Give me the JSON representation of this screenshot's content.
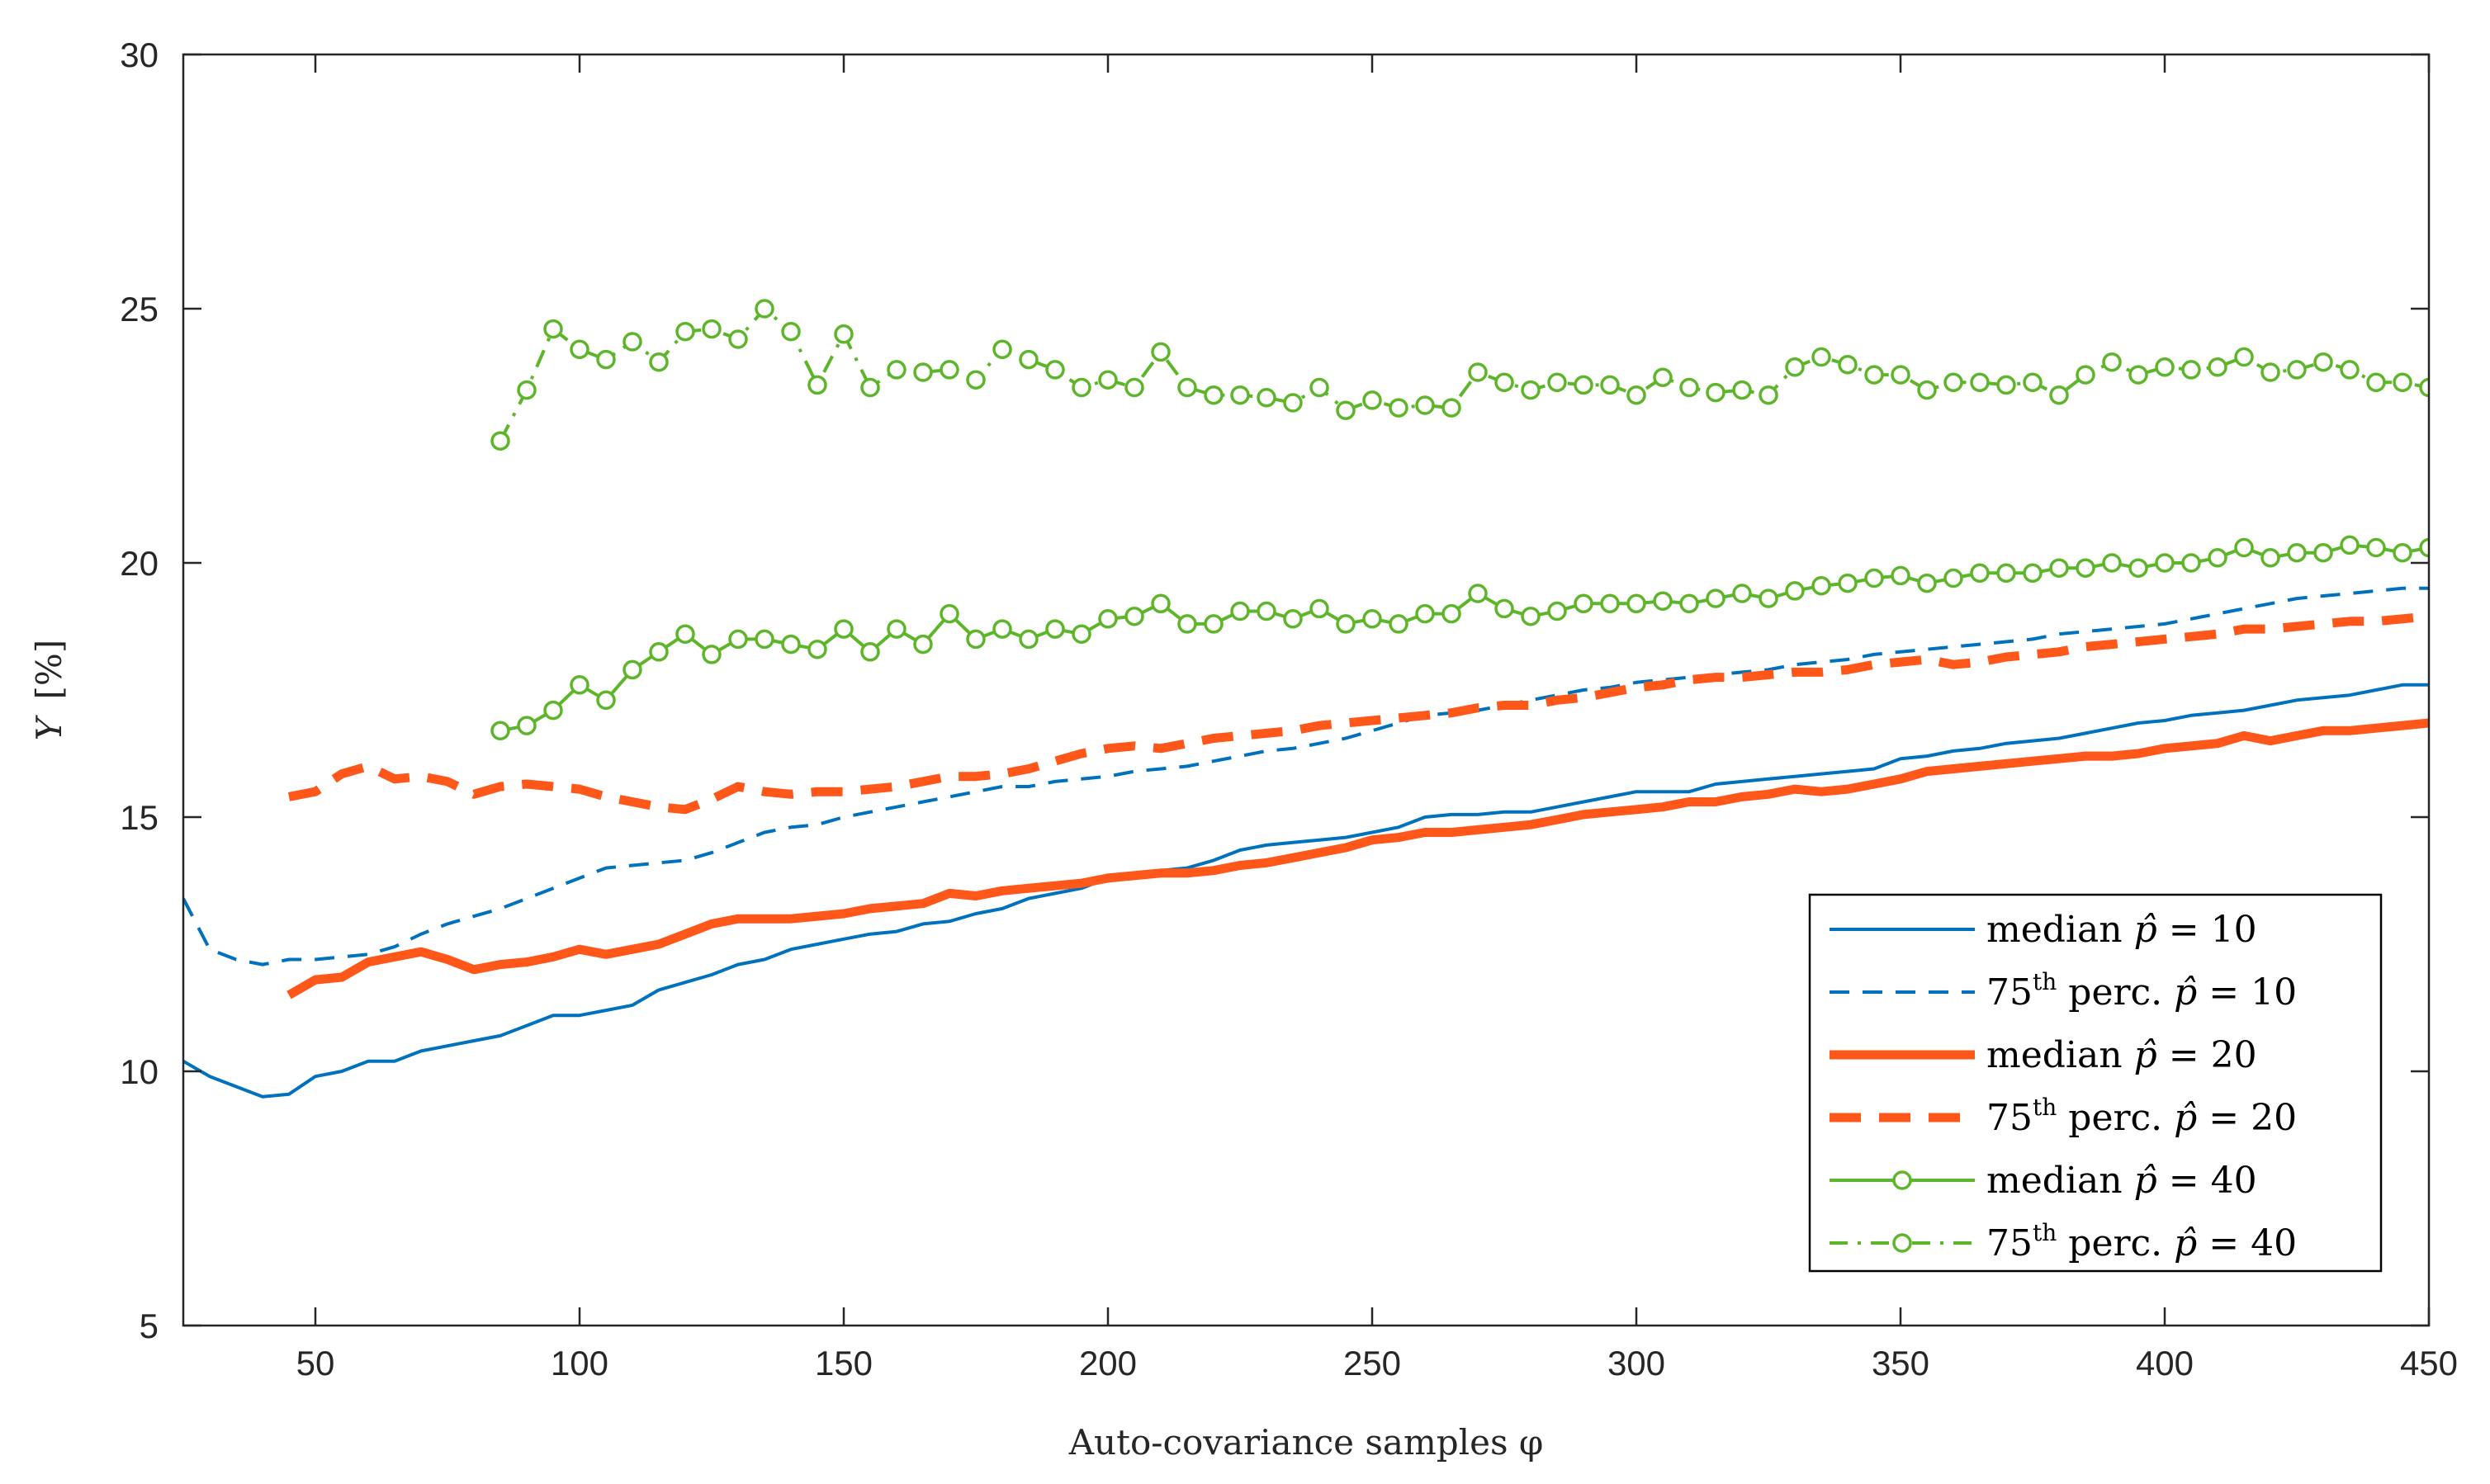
{
  "chart_data": {
    "type": "line",
    "title": "",
    "xlabel": "Auto-covariance samples φ",
    "ylabel": "Y [%]",
    "ylabel_parts": {
      "symbol": "Y",
      "unit": "[%]"
    },
    "xlim": [
      25,
      450
    ],
    "ylim": [
      5,
      30
    ],
    "xticks": [
      50,
      100,
      150,
      200,
      250,
      300,
      350,
      400,
      450
    ],
    "yticks": [
      5,
      10,
      15,
      20,
      25,
      30
    ],
    "grid": false,
    "legend_position": "bottom-right",
    "colors": {
      "blue": "#0072BD",
      "orange": "#FF5719",
      "green": "#5DB62A",
      "axis": "#262626"
    },
    "series": [
      {
        "name": "median p̂ = 10",
        "legend": {
          "pre": "median ",
          "sup": "",
          "post": "",
          "p": "p̂",
          "eq": " = 10"
        },
        "color": "#0072BD",
        "style": "solid",
        "width": 4,
        "marker": "none",
        "x": [
          25,
          30,
          35,
          40,
          45,
          50,
          55,
          60,
          65,
          70,
          75,
          80,
          85,
          90,
          95,
          100,
          105,
          110,
          115,
          120,
          125,
          130,
          135,
          140,
          145,
          150,
          155,
          160,
          165,
          170,
          175,
          180,
          185,
          190,
          195,
          200,
          205,
          210,
          215,
          220,
          225,
          230,
          235,
          240,
          245,
          250,
          255,
          260,
          265,
          270,
          275,
          280,
          285,
          290,
          295,
          300,
          305,
          310,
          315,
          320,
          325,
          330,
          335,
          340,
          345,
          350,
          355,
          360,
          365,
          370,
          375,
          380,
          385,
          390,
          395,
          400,
          405,
          410,
          415,
          420,
          425,
          430,
          435,
          440,
          445,
          450
        ],
        "values": [
          10.2,
          9.9,
          9.7,
          9.5,
          9.55,
          9.9,
          10.0,
          10.2,
          10.2,
          10.4,
          10.5,
          10.6,
          10.7,
          10.9,
          11.1,
          11.1,
          11.2,
          11.3,
          11.6,
          11.75,
          11.9,
          12.1,
          12.2,
          12.4,
          12.5,
          12.6,
          12.7,
          12.75,
          12.9,
          12.95,
          13.1,
          13.2,
          13.4,
          13.5,
          13.6,
          13.8,
          13.85,
          13.95,
          14.0,
          14.15,
          14.35,
          14.45,
          14.5,
          14.55,
          14.6,
          14.7,
          14.8,
          15.0,
          15.05,
          15.05,
          15.1,
          15.1,
          15.2,
          15.3,
          15.4,
          15.5,
          15.5,
          15.5,
          15.65,
          15.7,
          15.75,
          15.8,
          15.85,
          15.9,
          15.95,
          16.15,
          16.2,
          16.3,
          16.35,
          16.45,
          16.5,
          16.55,
          16.65,
          16.75,
          16.85,
          16.9,
          17.0,
          17.05,
          17.1,
          17.2,
          17.3,
          17.35,
          17.4,
          17.5,
          17.6,
          17.6
        ]
      },
      {
        "name": "75th perc. p̂ = 10",
        "legend": {
          "pre": "75",
          "sup": "th",
          "post": "  perc. ",
          "p": "p̂",
          "eq": " = 10"
        },
        "color": "#0072BD",
        "style": "dashed",
        "width": 4,
        "marker": "none",
        "x": [
          25,
          30,
          35,
          40,
          45,
          50,
          55,
          60,
          65,
          70,
          75,
          80,
          85,
          90,
          95,
          100,
          105,
          110,
          115,
          120,
          125,
          130,
          135,
          140,
          145,
          150,
          155,
          160,
          165,
          170,
          175,
          180,
          185,
          190,
          195,
          200,
          205,
          210,
          215,
          220,
          225,
          230,
          235,
          240,
          245,
          250,
          255,
          260,
          265,
          270,
          275,
          280,
          285,
          290,
          295,
          300,
          305,
          310,
          315,
          320,
          325,
          330,
          335,
          340,
          345,
          350,
          355,
          360,
          365,
          370,
          375,
          380,
          385,
          390,
          395,
          400,
          405,
          410,
          415,
          420,
          425,
          430,
          435,
          440,
          445,
          450
        ],
        "values": [
          13.4,
          12.4,
          12.2,
          12.1,
          12.2,
          12.2,
          12.25,
          12.3,
          12.45,
          12.7,
          12.9,
          13.05,
          13.2,
          13.4,
          13.6,
          13.8,
          14.0,
          14.05,
          14.1,
          14.15,
          14.3,
          14.5,
          14.7,
          14.8,
          14.85,
          15.0,
          15.1,
          15.2,
          15.3,
          15.4,
          15.5,
          15.6,
          15.6,
          15.7,
          15.75,
          15.8,
          15.9,
          15.95,
          16.0,
          16.1,
          16.2,
          16.3,
          16.35,
          16.45,
          16.55,
          16.7,
          16.85,
          17.0,
          17.05,
          17.1,
          17.2,
          17.3,
          17.4,
          17.5,
          17.55,
          17.65,
          17.7,
          17.75,
          17.8,
          17.85,
          17.9,
          18.0,
          18.05,
          18.1,
          18.2,
          18.25,
          18.3,
          18.35,
          18.4,
          18.45,
          18.5,
          18.6,
          18.65,
          18.7,
          18.75,
          18.8,
          18.9,
          19.0,
          19.1,
          19.2,
          19.3,
          19.35,
          19.4,
          19.45,
          19.5,
          19.5
        ]
      },
      {
        "name": "median p̂ = 20",
        "legend": {
          "pre": "median ",
          "sup": "",
          "post": "",
          "p": "p̂",
          "eq": " = 20"
        },
        "color": "#FF5719",
        "style": "solid",
        "width": 11,
        "marker": "none",
        "x": [
          45,
          50,
          55,
          60,
          65,
          70,
          75,
          80,
          85,
          90,
          95,
          100,
          105,
          110,
          115,
          120,
          125,
          130,
          135,
          140,
          145,
          150,
          155,
          160,
          165,
          170,
          175,
          180,
          185,
          190,
          195,
          200,
          205,
          210,
          215,
          220,
          225,
          230,
          235,
          240,
          245,
          250,
          255,
          260,
          265,
          270,
          275,
          280,
          285,
          290,
          295,
          300,
          305,
          310,
          315,
          320,
          325,
          330,
          335,
          340,
          345,
          350,
          355,
          360,
          365,
          370,
          375,
          380,
          385,
          390,
          395,
          400,
          405,
          410,
          415,
          420,
          425,
          430,
          435,
          440,
          445,
          450
        ],
        "values": [
          11.5,
          11.8,
          11.85,
          12.15,
          12.25,
          12.35,
          12.2,
          12.0,
          12.1,
          12.15,
          12.25,
          12.4,
          12.3,
          12.4,
          12.5,
          12.7,
          12.9,
          13.0,
          13.0,
          13.0,
          13.05,
          13.1,
          13.2,
          13.25,
          13.3,
          13.5,
          13.45,
          13.55,
          13.6,
          13.65,
          13.7,
          13.8,
          13.85,
          13.9,
          13.9,
          13.95,
          14.05,
          14.1,
          14.2,
          14.3,
          14.4,
          14.55,
          14.6,
          14.7,
          14.7,
          14.75,
          14.8,
          14.85,
          14.95,
          15.05,
          15.1,
          15.15,
          15.2,
          15.3,
          15.3,
          15.4,
          15.45,
          15.55,
          15.5,
          15.55,
          15.65,
          15.75,
          15.9,
          15.95,
          16.0,
          16.05,
          16.1,
          16.15,
          16.2,
          16.2,
          16.25,
          16.35,
          16.4,
          16.45,
          16.6,
          16.5,
          16.6,
          16.7,
          16.7,
          16.75,
          16.8,
          16.85
        ]
      },
      {
        "name": "75th perc. p̂ = 20",
        "legend": {
          "pre": "75",
          "sup": "th",
          "post": "  perc. ",
          "p": "p̂",
          "eq": " = 20"
        },
        "color": "#FF5719",
        "style": "dashed",
        "width": 11,
        "marker": "none",
        "x": [
          45,
          50,
          55,
          60,
          65,
          70,
          75,
          80,
          85,
          90,
          95,
          100,
          105,
          110,
          115,
          120,
          125,
          130,
          135,
          140,
          145,
          150,
          155,
          160,
          165,
          170,
          175,
          180,
          185,
          190,
          195,
          200,
          205,
          210,
          215,
          220,
          225,
          230,
          235,
          240,
          245,
          250,
          255,
          260,
          265,
          270,
          275,
          280,
          285,
          290,
          295,
          300,
          305,
          310,
          315,
          320,
          325,
          330,
          335,
          340,
          345,
          350,
          355,
          360,
          365,
          370,
          375,
          380,
          385,
          390,
          395,
          400,
          405,
          410,
          415,
          420,
          425,
          430,
          435,
          440,
          445,
          450
        ],
        "values": [
          15.4,
          15.5,
          15.85,
          16.0,
          15.75,
          15.8,
          15.7,
          15.45,
          15.6,
          15.65,
          15.6,
          15.55,
          15.4,
          15.3,
          15.2,
          15.15,
          15.35,
          15.6,
          15.5,
          15.45,
          15.5,
          15.5,
          15.55,
          15.6,
          15.7,
          15.8,
          15.8,
          15.85,
          15.95,
          16.1,
          16.25,
          16.35,
          16.4,
          16.35,
          16.45,
          16.55,
          16.6,
          16.65,
          16.7,
          16.8,
          16.85,
          16.9,
          16.95,
          17.0,
          17.05,
          17.15,
          17.2,
          17.2,
          17.3,
          17.35,
          17.45,
          17.55,
          17.6,
          17.7,
          17.75,
          17.75,
          17.8,
          17.85,
          17.85,
          17.9,
          18.0,
          18.05,
          18.1,
          18.0,
          18.05,
          18.15,
          18.2,
          18.25,
          18.35,
          18.4,
          18.45,
          18.5,
          18.55,
          18.6,
          18.7,
          18.7,
          18.75,
          18.8,
          18.85,
          18.85,
          18.9,
          18.95
        ]
      },
      {
        "name": "median p̂ = 40",
        "legend": {
          "pre": "median ",
          "sup": "",
          "post": "",
          "p": "p̂",
          "eq": " = 40"
        },
        "color": "#5DB62A",
        "style": "solid",
        "width": 4,
        "marker": "circle",
        "x": [
          85,
          90,
          95,
          100,
          105,
          110,
          115,
          120,
          125,
          130,
          135,
          140,
          145,
          150,
          155,
          160,
          165,
          170,
          175,
          180,
          185,
          190,
          195,
          200,
          205,
          210,
          215,
          220,
          225,
          230,
          235,
          240,
          245,
          250,
          255,
          260,
          265,
          270,
          275,
          280,
          285,
          290,
          295,
          300,
          305,
          310,
          315,
          320,
          325,
          330,
          335,
          340,
          345,
          350,
          355,
          360,
          365,
          370,
          375,
          380,
          385,
          390,
          395,
          400,
          405,
          410,
          415,
          420,
          425,
          430,
          435,
          440,
          445,
          450
        ],
        "values": [
          16.7,
          16.8,
          17.1,
          17.6,
          17.3,
          17.9,
          18.25,
          18.6,
          18.2,
          18.5,
          18.5,
          18.4,
          18.3,
          18.7,
          18.25,
          18.7,
          18.4,
          19.0,
          18.5,
          18.7,
          18.5,
          18.7,
          18.6,
          18.9,
          18.95,
          19.2,
          18.8,
          18.8,
          19.05,
          19.05,
          18.9,
          19.1,
          18.8,
          18.9,
          18.8,
          19.0,
          19.0,
          19.4,
          19.1,
          18.95,
          19.05,
          19.2,
          19.2,
          19.2,
          19.25,
          19.2,
          19.3,
          19.4,
          19.3,
          19.45,
          19.55,
          19.6,
          19.7,
          19.75,
          19.6,
          19.7,
          19.8,
          19.8,
          19.8,
          19.9,
          19.9,
          20.0,
          19.9,
          20.0,
          20.0,
          20.1,
          20.3,
          20.1,
          20.2,
          20.2,
          20.35,
          20.3,
          20.2,
          20.3
        ]
      },
      {
        "name": "75th perc. p̂ = 40",
        "legend": {
          "pre": "75",
          "sup": "th",
          "post": "  perc. ",
          "p": "p̂",
          "eq": " = 40"
        },
        "color": "#5DB62A",
        "style": "dashdot",
        "width": 4,
        "marker": "circle",
        "x": [
          85,
          90,
          95,
          100,
          105,
          110,
          115,
          120,
          125,
          130,
          135,
          140,
          145,
          150,
          155,
          160,
          165,
          170,
          175,
          180,
          185,
          190,
          195,
          200,
          205,
          210,
          215,
          220,
          225,
          230,
          235,
          240,
          245,
          250,
          255,
          260,
          265,
          270,
          275,
          280,
          285,
          290,
          295,
          300,
          305,
          310,
          315,
          320,
          325,
          330,
          335,
          340,
          345,
          350,
          355,
          360,
          365,
          370,
          375,
          380,
          385,
          390,
          395,
          400,
          405,
          410,
          415,
          420,
          425,
          430,
          435,
          440,
          445,
          450
        ],
        "values": [
          22.4,
          23.4,
          24.6,
          24.2,
          24.0,
          24.35,
          23.95,
          24.55,
          24.6,
          24.4,
          25.0,
          24.55,
          23.5,
          24.5,
          23.45,
          23.8,
          23.75,
          23.8,
          23.6,
          24.2,
          24.0,
          23.8,
          23.45,
          23.6,
          23.45,
          24.15,
          23.45,
          23.3,
          23.3,
          23.25,
          23.15,
          23.45,
          23.0,
          23.2,
          23.05,
          23.1,
          23.05,
          23.75,
          23.55,
          23.4,
          23.55,
          23.5,
          23.5,
          23.3,
          23.65,
          23.45,
          23.35,
          23.4,
          23.3,
          23.85,
          24.05,
          23.9,
          23.7,
          23.7,
          23.4,
          23.55,
          23.55,
          23.5,
          23.55,
          23.3,
          23.7,
          23.95,
          23.7,
          23.85,
          23.8,
          23.85,
          24.05,
          23.75,
          23.8,
          23.95,
          23.8,
          23.55,
          23.55,
          23.45
        ]
      }
    ]
  }
}
